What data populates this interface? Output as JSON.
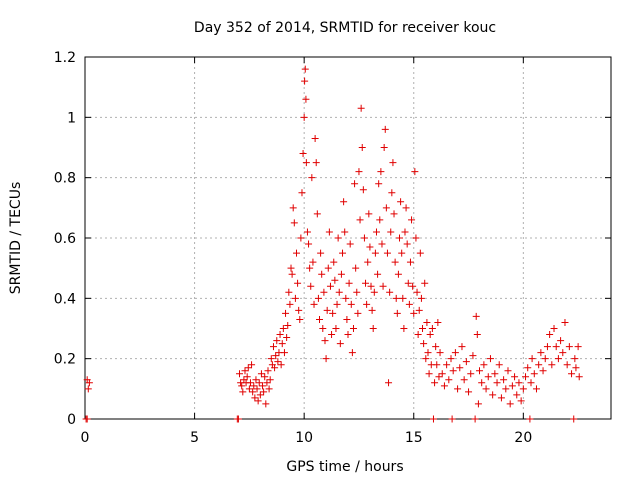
{
  "chart_data": {
    "type": "scatter",
    "title": "Day 352 of 2014, SRMTID for receiver kouc",
    "xlabel": "GPS time / hours",
    "ylabel": "SRMTID / TECUs",
    "xlim": [
      0,
      24
    ],
    "ylim": [
      0,
      1.2
    ],
    "x_ticks": [
      0,
      5,
      10,
      15,
      20
    ],
    "y_ticks": [
      0,
      0.2,
      0.4,
      0.6,
      0.8,
      1,
      1.2
    ],
    "x_tick_labels": [
      "0",
      "5",
      "10",
      "15",
      "20"
    ],
    "y_tick_labels": [
      "0",
      "0.2",
      "0.4",
      "0.6",
      "0.8",
      "1",
      "1.2"
    ],
    "grid": true,
    "marker": "plus",
    "color": "#e00000",
    "series": [
      {
        "name": "kouc",
        "points": [
          [
            0.1,
            0.13
          ],
          [
            0.15,
            0.1
          ],
          [
            0.2,
            0.12
          ],
          [
            0.05,
            0.0
          ],
          [
            0.1,
            0.0
          ],
          [
            6.95,
            0.0
          ],
          [
            7.0,
            0.0
          ],
          [
            7.05,
            0.15
          ],
          [
            7.1,
            0.12
          ],
          [
            7.15,
            0.11
          ],
          [
            7.2,
            0.09
          ],
          [
            7.25,
            0.13
          ],
          [
            7.3,
            0.16
          ],
          [
            7.35,
            0.12
          ],
          [
            7.4,
            0.14
          ],
          [
            7.45,
            0.17
          ],
          [
            7.5,
            0.1
          ],
          [
            7.55,
            0.12
          ],
          [
            7.6,
            0.18
          ],
          [
            7.65,
            0.09
          ],
          [
            7.7,
            0.11
          ],
          [
            7.75,
            0.07
          ],
          [
            7.8,
            0.13
          ],
          [
            7.85,
            0.1
          ],
          [
            7.9,
            0.06
          ],
          [
            7.95,
            0.12
          ],
          [
            8.0,
            0.08
          ],
          [
            8.05,
            0.15
          ],
          [
            8.1,
            0.11
          ],
          [
            8.15,
            0.09
          ],
          [
            8.2,
            0.14
          ],
          [
            8.25,
            0.05
          ],
          [
            8.3,
            0.12
          ],
          [
            8.35,
            0.16
          ],
          [
            8.4,
            0.1
          ],
          [
            8.45,
            0.13
          ],
          [
            8.5,
            0.2
          ],
          [
            8.55,
            0.18
          ],
          [
            8.6,
            0.24
          ],
          [
            8.65,
            0.17
          ],
          [
            8.7,
            0.21
          ],
          [
            8.75,
            0.26
          ],
          [
            8.8,
            0.19
          ],
          [
            8.85,
            0.22
          ],
          [
            8.9,
            0.28
          ],
          [
            8.95,
            0.18
          ],
          [
            9.0,
            0.25
          ],
          [
            9.05,
            0.3
          ],
          [
            9.1,
            0.22
          ],
          [
            9.15,
            0.35
          ],
          [
            9.2,
            0.27
          ],
          [
            9.25,
            0.31
          ],
          [
            9.3,
            0.42
          ],
          [
            9.35,
            0.38
          ],
          [
            9.4,
            0.5
          ],
          [
            9.45,
            0.48
          ],
          [
            9.5,
            0.7
          ],
          [
            9.55,
            0.65
          ],
          [
            9.6,
            0.4
          ],
          [
            9.65,
            0.55
          ],
          [
            9.7,
            0.45
          ],
          [
            9.75,
            0.36
          ],
          [
            9.8,
            0.33
          ],
          [
            9.85,
            0.6
          ],
          [
            9.9,
            0.75
          ],
          [
            9.95,
            0.88
          ],
          [
            10.0,
            1.0
          ],
          [
            10.02,
            1.12
          ],
          [
            10.05,
            1.16
          ],
          [
            10.08,
            1.06
          ],
          [
            10.1,
            0.85
          ],
          [
            10.15,
            0.62
          ],
          [
            10.2,
            0.58
          ],
          [
            10.25,
            0.5
          ],
          [
            10.3,
            0.44
          ],
          [
            10.35,
            0.8
          ],
          [
            10.4,
            0.52
          ],
          [
            10.45,
            0.38
          ],
          [
            10.5,
            0.93
          ],
          [
            10.55,
            0.85
          ],
          [
            10.6,
            0.68
          ],
          [
            10.65,
            0.4
          ],
          [
            10.7,
            0.33
          ],
          [
            10.75,
            0.55
          ],
          [
            10.8,
            0.48
          ],
          [
            10.85,
            0.3
          ],
          [
            10.9,
            0.42
          ],
          [
            10.95,
            0.26
          ],
          [
            11.0,
            0.2
          ],
          [
            11.05,
            0.36
          ],
          [
            11.1,
            0.5
          ],
          [
            11.15,
            0.62
          ],
          [
            11.2,
            0.44
          ],
          [
            11.25,
            0.28
          ],
          [
            11.3,
            0.35
          ],
          [
            11.35,
            0.52
          ],
          [
            11.4,
            0.46
          ],
          [
            11.45,
            0.3
          ],
          [
            11.5,
            0.38
          ],
          [
            11.55,
            0.6
          ],
          [
            11.6,
            0.42
          ],
          [
            11.65,
            0.25
          ],
          [
            11.7,
            0.48
          ],
          [
            11.75,
            0.55
          ],
          [
            11.8,
            0.72
          ],
          [
            11.85,
            0.62
          ],
          [
            11.9,
            0.4
          ],
          [
            11.95,
            0.33
          ],
          [
            12.0,
            0.28
          ],
          [
            12.05,
            0.45
          ],
          [
            12.1,
            0.58
          ],
          [
            12.15,
            0.38
          ],
          [
            12.2,
            0.22
          ],
          [
            12.25,
            0.3
          ],
          [
            12.3,
            0.78
          ],
          [
            12.35,
            0.5
          ],
          [
            12.4,
            0.42
          ],
          [
            12.45,
            0.35
          ],
          [
            12.5,
            0.82
          ],
          [
            12.55,
            0.66
          ],
          [
            12.6,
            1.03
          ],
          [
            12.65,
            0.9
          ],
          [
            12.7,
            0.76
          ],
          [
            12.75,
            0.6
          ],
          [
            12.8,
            0.45
          ],
          [
            12.85,
            0.38
          ],
          [
            12.9,
            0.52
          ],
          [
            12.95,
            0.68
          ],
          [
            13.0,
            0.57
          ],
          [
            13.05,
            0.44
          ],
          [
            13.1,
            0.36
          ],
          [
            13.15,
            0.3
          ],
          [
            13.2,
            0.42
          ],
          [
            13.25,
            0.55
          ],
          [
            13.3,
            0.62
          ],
          [
            13.35,
            0.48
          ],
          [
            13.4,
            0.78
          ],
          [
            13.45,
            0.66
          ],
          [
            13.5,
            0.82
          ],
          [
            13.55,
            0.58
          ],
          [
            13.6,
            0.44
          ],
          [
            13.65,
            0.9
          ],
          [
            13.7,
            0.96
          ],
          [
            13.75,
            0.7
          ],
          [
            13.8,
            0.55
          ],
          [
            13.85,
            0.12
          ],
          [
            13.9,
            0.42
          ],
          [
            13.95,
            0.62
          ],
          [
            14.0,
            0.75
          ],
          [
            14.05,
            0.85
          ],
          [
            14.1,
            0.68
          ],
          [
            14.15,
            0.52
          ],
          [
            14.2,
            0.4
          ],
          [
            14.25,
            0.35
          ],
          [
            14.3,
            0.48
          ],
          [
            14.35,
            0.6
          ],
          [
            14.4,
            0.72
          ],
          [
            14.45,
            0.55
          ],
          [
            14.5,
            0.4
          ],
          [
            14.55,
            0.3
          ],
          [
            14.6,
            0.62
          ],
          [
            14.65,
            0.7
          ],
          [
            14.7,
            0.58
          ],
          [
            14.75,
            0.45
          ],
          [
            14.8,
            0.38
          ],
          [
            14.85,
            0.52
          ],
          [
            14.9,
            0.66
          ],
          [
            14.95,
            0.44
          ],
          [
            15.0,
            0.35
          ],
          [
            15.05,
            0.82
          ],
          [
            15.1,
            0.6
          ],
          [
            15.15,
            0.42
          ],
          [
            15.2,
            0.28
          ],
          [
            15.25,
            0.36
          ],
          [
            15.3,
            0.55
          ],
          [
            15.35,
            0.4
          ],
          [
            15.4,
            0.3
          ],
          [
            15.45,
            0.25
          ],
          [
            15.5,
            0.45
          ],
          [
            15.55,
            0.2
          ],
          [
            15.6,
            0.32
          ],
          [
            15.65,
            0.22
          ],
          [
            15.7,
            0.15
          ],
          [
            15.75,
            0.28
          ],
          [
            15.8,
            0.18
          ],
          [
            15.85,
            0.3
          ],
          [
            15.9,
            0.0
          ],
          [
            15.95,
            0.12
          ],
          [
            16.0,
            0.24
          ],
          [
            16.05,
            0.18
          ],
          [
            16.1,
            0.32
          ],
          [
            16.15,
            0.14
          ],
          [
            16.2,
            0.22
          ],
          [
            16.3,
            0.15
          ],
          [
            16.4,
            0.11
          ],
          [
            16.5,
            0.18
          ],
          [
            16.6,
            0.13
          ],
          [
            16.7,
            0.2
          ],
          [
            16.75,
            0.0
          ],
          [
            16.8,
            0.16
          ],
          [
            16.9,
            0.22
          ],
          [
            17.0,
            0.1
          ],
          [
            17.1,
            0.17
          ],
          [
            17.2,
            0.24
          ],
          [
            17.3,
            0.13
          ],
          [
            17.4,
            0.19
          ],
          [
            17.5,
            0.09
          ],
          [
            17.6,
            0.15
          ],
          [
            17.7,
            0.21
          ],
          [
            17.8,
            0.0
          ],
          [
            17.85,
            0.34
          ],
          [
            17.9,
            0.28
          ],
          [
            17.95,
            0.05
          ],
          [
            18.0,
            0.16
          ],
          [
            18.1,
            0.12
          ],
          [
            18.2,
            0.18
          ],
          [
            18.3,
            0.1
          ],
          [
            18.4,
            0.14
          ],
          [
            18.5,
            0.2
          ],
          [
            18.6,
            0.08
          ],
          [
            18.7,
            0.15
          ],
          [
            18.8,
            0.12
          ],
          [
            18.9,
            0.18
          ],
          [
            19.0,
            0.07
          ],
          [
            19.1,
            0.13
          ],
          [
            19.2,
            0.1
          ],
          [
            19.3,
            0.16
          ],
          [
            19.4,
            0.05
          ],
          [
            19.5,
            0.11
          ],
          [
            19.6,
            0.14
          ],
          [
            19.7,
            0.08
          ],
          [
            19.8,
            0.12
          ],
          [
            19.9,
            0.06
          ],
          [
            20.0,
            0.1
          ],
          [
            20.1,
            0.14
          ],
          [
            20.2,
            0.17
          ],
          [
            20.3,
            0.0
          ],
          [
            20.35,
            0.12
          ],
          [
            20.4,
            0.2
          ],
          [
            20.5,
            0.15
          ],
          [
            20.6,
            0.1
          ],
          [
            20.7,
            0.18
          ],
          [
            20.8,
            0.22
          ],
          [
            20.9,
            0.16
          ],
          [
            21.0,
            0.2
          ],
          [
            21.1,
            0.24
          ],
          [
            21.2,
            0.28
          ],
          [
            21.3,
            0.18
          ],
          [
            21.4,
            0.3
          ],
          [
            21.5,
            0.24
          ],
          [
            21.6,
            0.2
          ],
          [
            21.7,
            0.26
          ],
          [
            21.8,
            0.22
          ],
          [
            21.9,
            0.32
          ],
          [
            22.0,
            0.18
          ],
          [
            22.1,
            0.24
          ],
          [
            22.2,
            0.15
          ],
          [
            22.3,
            0.0
          ],
          [
            22.35,
            0.2
          ],
          [
            22.4,
            0.17
          ],
          [
            22.5,
            0.24
          ],
          [
            22.55,
            0.14
          ]
        ]
      }
    ]
  }
}
